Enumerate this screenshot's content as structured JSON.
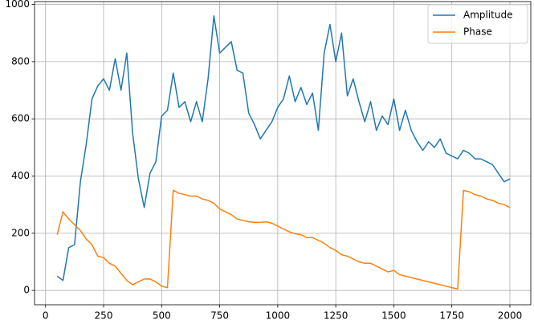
{
  "chart_data": {
    "type": "line",
    "x": [
      50,
      75,
      100,
      125,
      150,
      175,
      200,
      225,
      250,
      275,
      300,
      325,
      350,
      375,
      400,
      425,
      450,
      475,
      500,
      525,
      550,
      575,
      600,
      625,
      650,
      675,
      700,
      725,
      750,
      775,
      800,
      825,
      850,
      875,
      900,
      925,
      950,
      975,
      1000,
      1025,
      1050,
      1075,
      1100,
      1125,
      1150,
      1175,
      1200,
      1225,
      1250,
      1275,
      1300,
      1325,
      1350,
      1375,
      1400,
      1425,
      1450,
      1475,
      1500,
      1525,
      1550,
      1575,
      1600,
      1625,
      1650,
      1675,
      1700,
      1725,
      1750,
      1775,
      1800,
      1825,
      1850,
      1875,
      1900,
      1925,
      1950,
      1975,
      2000
    ],
    "series": [
      {
        "name": "Amplitude",
        "color": "#1f77b4",
        "values": [
          50,
          35,
          150,
          160,
          380,
          510,
          670,
          715,
          740,
          700,
          810,
          700,
          830,
          550,
          390,
          290,
          410,
          450,
          610,
          630,
          760,
          640,
          660,
          590,
          660,
          590,
          740,
          960,
          830,
          850,
          870,
          770,
          760,
          620,
          580,
          530,
          560,
          590,
          640,
          670,
          750,
          660,
          710,
          650,
          690,
          560,
          830,
          930,
          800,
          900,
          680,
          740,
          660,
          590,
          660,
          560,
          610,
          580,
          670,
          560,
          630,
          560,
          520,
          490,
          520,
          500,
          530,
          480,
          470,
          460,
          490,
          480,
          460,
          460,
          450,
          440,
          410,
          380,
          390
        ]
      },
      {
        "name": "Phase",
        "color": "#ff7f0e",
        "values": [
          195,
          275,
          250,
          230,
          210,
          180,
          160,
          120,
          115,
          95,
          85,
          60,
          35,
          20,
          30,
          40,
          40,
          30,
          15,
          10,
          350,
          340,
          335,
          330,
          330,
          320,
          315,
          305,
          285,
          275,
          265,
          250,
          245,
          240,
          238,
          238,
          240,
          235,
          225,
          215,
          205,
          198,
          195,
          185,
          185,
          175,
          165,
          150,
          140,
          125,
          120,
          110,
          100,
          95,
          95,
          85,
          75,
          65,
          70,
          55,
          50,
          45,
          40,
          35,
          30,
          25,
          20,
          15,
          10,
          5,
          350,
          345,
          335,
          330,
          320,
          315,
          305,
          300,
          290
        ]
      }
    ],
    "xlim": [
      -47.5,
      2090
    ],
    "ylim": [
      -50,
      1010
    ],
    "xticks": [
      0,
      250,
      500,
      750,
      1000,
      1250,
      1500,
      1750,
      2000
    ],
    "yticks": [
      0,
      200,
      400,
      600,
      800,
      1000
    ],
    "grid": true,
    "legend": "upper-right"
  }
}
